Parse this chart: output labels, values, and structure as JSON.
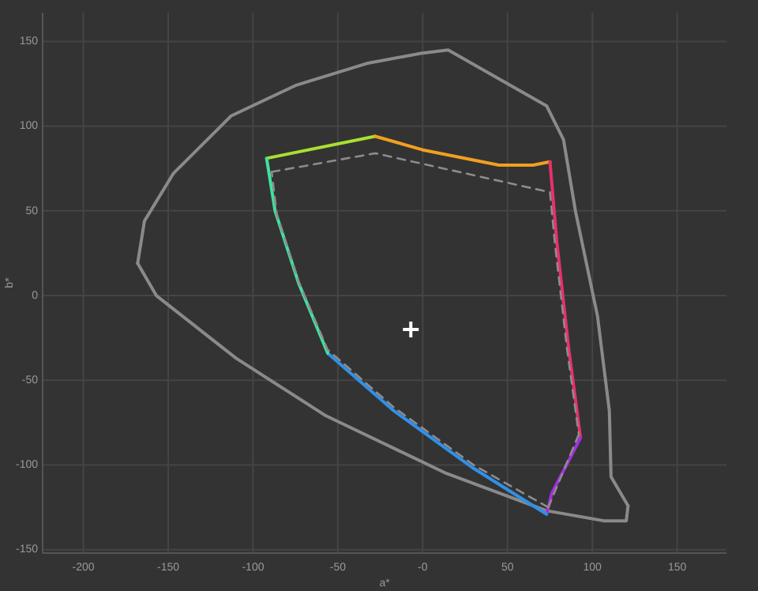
{
  "chart_data": {
    "type": "line",
    "xlabel": "a*",
    "ylabel": "b*",
    "xlim": [
      -224,
      179
    ],
    "ylim": [
      -152,
      167
    ],
    "xticks": [
      -200,
      -150,
      -100,
      -50,
      {
        "value": 0,
        "label": "-0"
      },
      50,
      100,
      150
    ],
    "yticks": [
      -150,
      -100,
      -50,
      0,
      50,
      100,
      150
    ],
    "grid": true,
    "marker": "none",
    "series": [
      {
        "color": "#8a8a8a",
        "x": [
          -168,
          -164,
          -147,
          -113,
          -75,
          -33,
          -1,
          15,
          73,
          83,
          90,
          103,
          110,
          111,
          121
        ],
        "values": [
          19,
          44,
          72,
          106,
          124,
          137,
          143,
          145,
          112,
          92,
          50,
          -12,
          -68,
          -107,
          -124
        ]
      },
      {
        "color": "#8a8a8a",
        "x": [
          121,
          120,
          107,
          73,
          14,
          -57,
          -110,
          -157,
          -168
        ],
        "values": [
          -124,
          -133,
          -133,
          -127,
          -105,
          -71,
          -37,
          0,
          19
        ]
      },
      {
        "color": "#a8e030",
        "x": [
          -92,
          -28
        ],
        "values": [
          81,
          94
        ]
      },
      {
        "color": "#f0a020",
        "x": [
          -28,
          0,
          45,
          65,
          75
        ],
        "values": [
          94,
          86,
          77,
          77,
          79
        ]
      },
      {
        "color": "#e8306a",
        "x": [
          75,
          79,
          86,
          93
        ],
        "values": [
          79,
          32,
          -31,
          -84
        ]
      },
      {
        "color": "#a030e0",
        "x": [
          93,
          76,
          73
        ],
        "values": [
          -84,
          -117,
          -129
        ]
      },
      {
        "color": "#3090e8",
        "x": [
          73,
          30,
          -17,
          -56
        ],
        "values": [
          -129,
          -102,
          -68,
          -34
        ]
      },
      {
        "color": "#40e0a0",
        "x": [
          -56,
          -73,
          -87,
          -92
        ],
        "values": [
          -34,
          7,
          50,
          81
        ]
      },
      {
        "color": "#8c8c8c",
        "line_style": "dashed",
        "x": [
          -89,
          -28,
          75
        ],
        "values": [
          73,
          84,
          61
        ]
      },
      {
        "color": "#8c8c8c",
        "line_style": "dashed",
        "x": [
          75,
          78,
          85,
          92
        ],
        "values": [
          61,
          30,
          -31,
          -82
        ]
      },
      {
        "color": "#8c8c8c",
        "line_style": "dashed",
        "x": [
          92,
          74
        ],
        "values": [
          -82,
          -125
        ]
      },
      {
        "color": "#8c8c8c",
        "line_style": "dashed",
        "x": [
          74,
          30,
          -17,
          -56,
          -73,
          -86,
          -89
        ],
        "values": [
          -125,
          -100,
          -66,
          -32,
          8,
          48,
          73
        ]
      },
      {
        "type": "scatter",
        "marker": "cross",
        "color": "#ffffff",
        "x": [
          -7
        ],
        "values": [
          -20
        ]
      }
    ]
  }
}
